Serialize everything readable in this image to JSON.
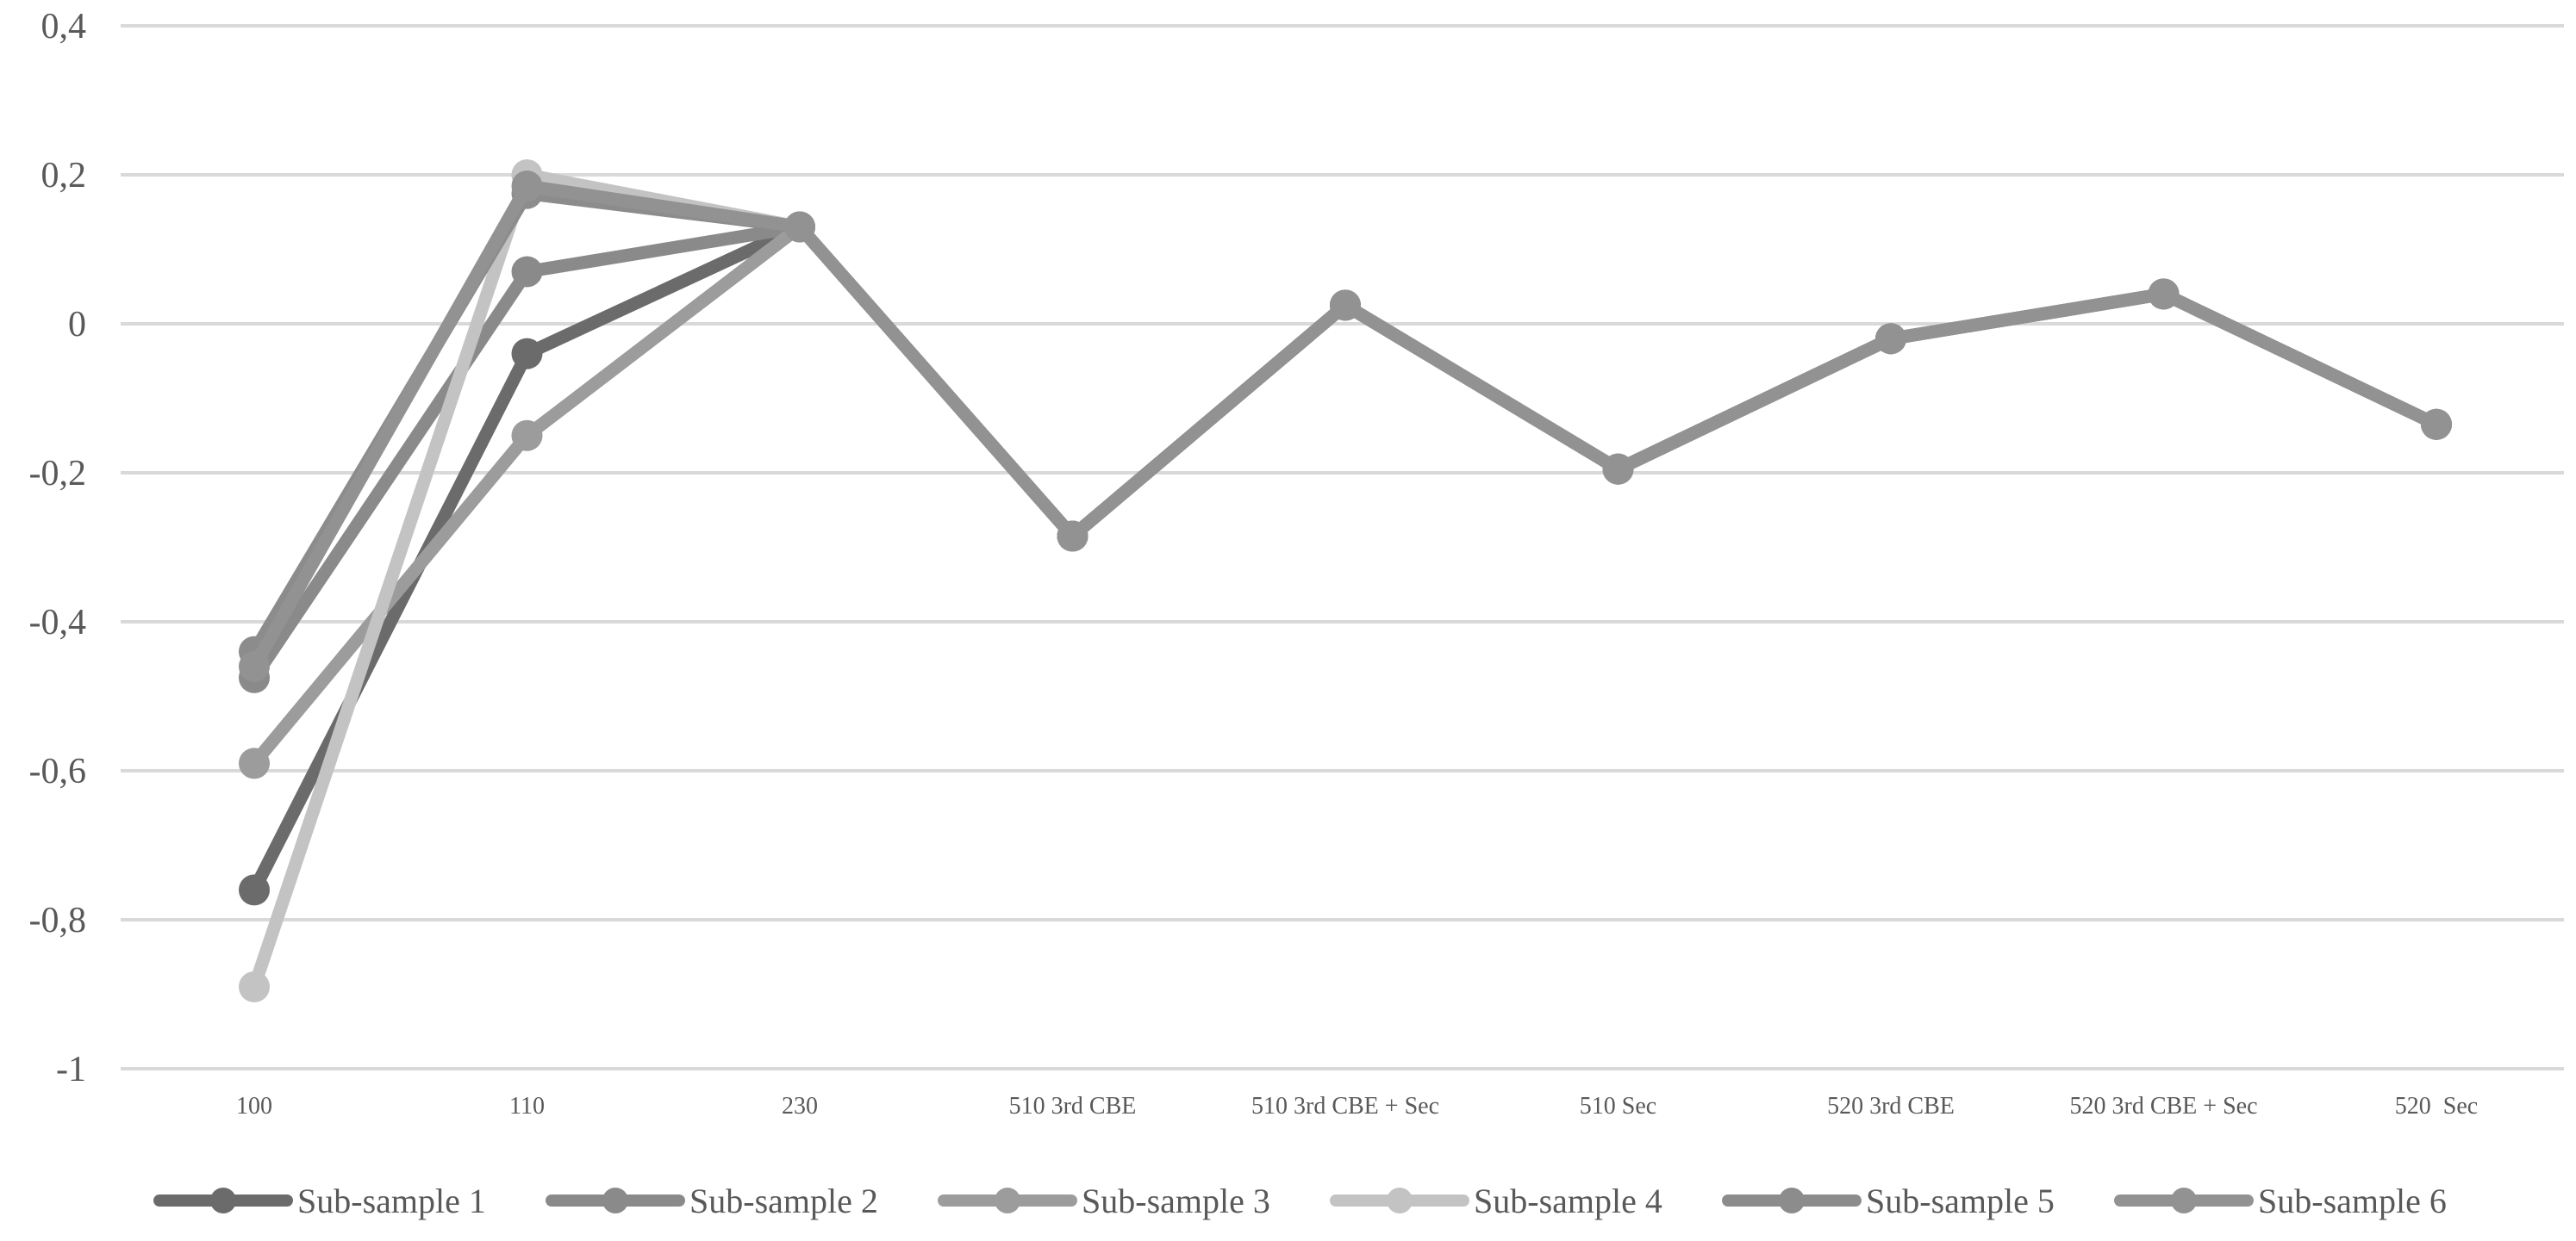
{
  "chart_data": {
    "type": "line",
    "title": "",
    "xlabel": "",
    "ylabel": "",
    "categories": [
      "100",
      "110",
      "230",
      "510 3rd CBE",
      "510 3rd CBE + Sec",
      "510 Sec",
      "520 3rd CBE",
      "520 3rd CBE + Sec",
      "520  Sec"
    ],
    "ylim": [
      -1,
      0.4
    ],
    "yticks": [
      0.4,
      0.2,
      0,
      -0.2,
      -0.4,
      -0.6,
      -0.8,
      -1
    ],
    "ytick_labels": [
      "0,4",
      "0,2",
      "0",
      "-0,2",
      "-0,4",
      "-0,6",
      "-0,8",
      "-1"
    ],
    "grid": true,
    "legend_position": "bottom",
    "series": [
      {
        "name": "Sub-sample 1",
        "color": "#6b6b6b",
        "values": [
          -0.76,
          -0.04,
          0.13,
          -0.285,
          0.025,
          -0.195,
          -0.02,
          0.04,
          -0.135
        ]
      },
      {
        "name": "Sub-sample 2",
        "color": "#8a8a8a",
        "values": [
          -0.475,
          0.07,
          0.13,
          -0.285,
          0.025,
          -0.195,
          -0.02,
          0.04,
          -0.135
        ]
      },
      {
        "name": "Sub-sample 3",
        "color": "#9c9c9c",
        "values": [
          -0.59,
          -0.15,
          0.13,
          -0.285,
          0.025,
          -0.195,
          -0.02,
          0.04,
          -0.135
        ]
      },
      {
        "name": "Sub-sample 4",
        "color": "#c3c3c3",
        "values": [
          -0.89,
          0.2,
          0.13,
          -0.285,
          0.025,
          -0.195,
          -0.02,
          0.04,
          -0.135
        ]
      },
      {
        "name": "Sub-sample 5",
        "color": "#8c8c8c",
        "values": [
          -0.44,
          0.175,
          0.13,
          -0.285,
          0.025,
          -0.195,
          -0.02,
          0.04,
          -0.135
        ]
      },
      {
        "name": "Sub-sample 6",
        "color": "#929292",
        "values": [
          -0.46,
          0.185,
          0.13,
          -0.285,
          0.025,
          -0.195,
          -0.02,
          0.04,
          -0.135
        ]
      }
    ]
  }
}
